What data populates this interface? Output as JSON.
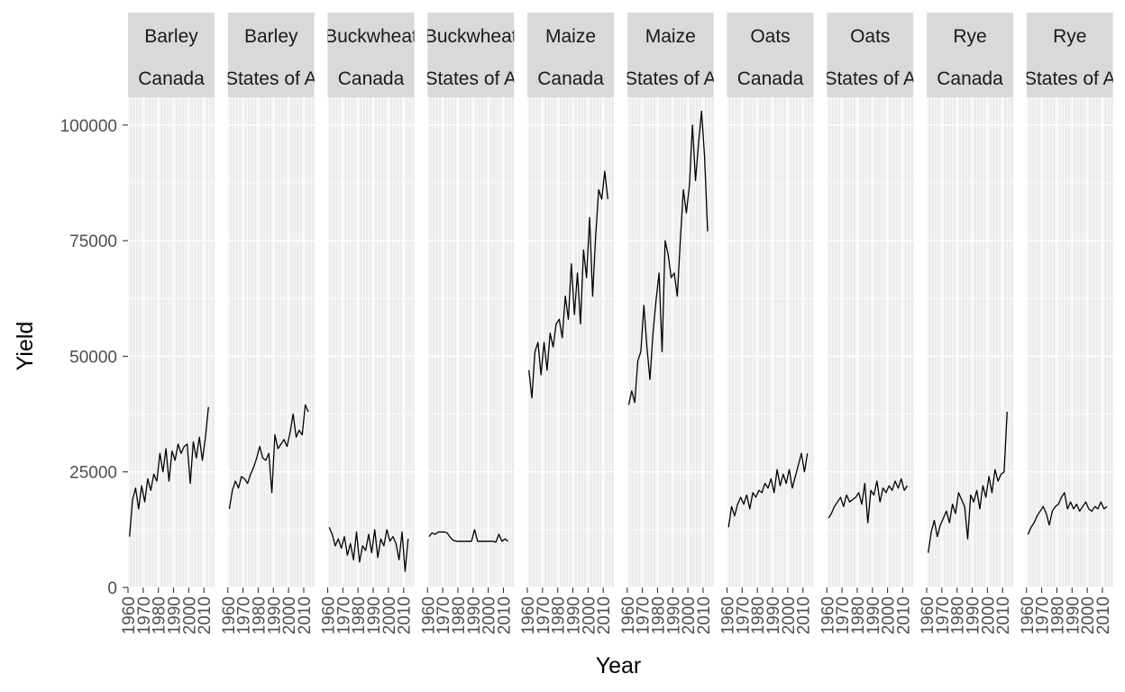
{
  "chart_data": {
    "type": "line",
    "layout": "facet_wrap",
    "xlabel": "Year",
    "ylabel": "Yield",
    "xlim": [
      1960,
      2017
    ],
    "ylim": [
      0,
      106000
    ],
    "x_ticks": [
      1960,
      1970,
      1980,
      1990,
      2000,
      2010
    ],
    "y_ticks": [
      0,
      25000,
      50000,
      75000,
      100000
    ],
    "y_tick_labels": [
      "0",
      "25000",
      "50000",
      "75000",
      "100000"
    ],
    "grid": true,
    "series_color": "#000000",
    "panel_background": "#ebebeb",
    "strip_background": "#d9d9d9",
    "panels": [
      {
        "strip": [
          "Barley",
          "Canada"
        ],
        "x_tick_labels": [
          "1960",
          "1970",
          "1980",
          "1990",
          "2000",
          "2010"
        ],
        "x": [
          1961,
          1963,
          1965,
          1967,
          1969,
          1971,
          1973,
          1975,
          1977,
          1979,
          1981,
          1983,
          1985,
          1987,
          1989,
          1991,
          1993,
          1995,
          1997,
          1999,
          2001,
          2003,
          2005,
          2007,
          2009,
          2011,
          2013
        ],
        "values": [
          11000,
          19000,
          21500,
          17000,
          22000,
          18500,
          23500,
          21000,
          24500,
          23000,
          29000,
          25000,
          30000,
          23000,
          29500,
          27500,
          31000,
          29000,
          30500,
          31000,
          22500,
          31500,
          28000,
          32500,
          27500,
          32500,
          39000
        ]
      },
      {
        "strip": [
          "Barley",
          "States of A"
        ],
        "x_tick_labels": [
          "1960",
          "1970",
          "1980",
          "1990",
          "2000",
          "2010"
        ],
        "x": [
          1961,
          1963,
          1965,
          1967,
          1969,
          1971,
          1973,
          1975,
          1977,
          1979,
          1981,
          1983,
          1985,
          1987,
          1989,
          1991,
          1993,
          1995,
          1997,
          1999,
          2001,
          2003,
          2005,
          2007,
          2009,
          2011,
          2013
        ],
        "values": [
          17000,
          21000,
          23000,
          21500,
          24000,
          23500,
          22500,
          24500,
          26000,
          28000,
          30500,
          28000,
          27500,
          29000,
          20500,
          33000,
          30000,
          31000,
          32000,
          30500,
          33500,
          37500,
          32500,
          34000,
          33000,
          39500,
          38000
        ]
      },
      {
        "strip": [
          "Buckwheat",
          "Canada"
        ],
        "x_tick_labels": [
          "1960",
          "1970",
          "1980",
          "1990",
          "2000",
          "2010"
        ],
        "x": [
          1961,
          1963,
          1965,
          1967,
          1969,
          1971,
          1973,
          1975,
          1977,
          1979,
          1981,
          1983,
          1985,
          1987,
          1989,
          1991,
          1993,
          1995,
          1997,
          1999,
          2001,
          2003,
          2005,
          2007,
          2009,
          2011,
          2013
        ],
        "values": [
          13000,
          11500,
          9000,
          10500,
          8500,
          11000,
          7000,
          9500,
          6000,
          12000,
          5500,
          9000,
          8000,
          11500,
          7500,
          12500,
          6500,
          10500,
          9000,
          12500,
          10000,
          11000,
          9500,
          6000,
          12000,
          3500,
          10500
        ]
      },
      {
        "strip": [
          "Buckwheat",
          "States of A"
        ],
        "x_tick_labels": [
          "1960",
          "1970",
          "1980",
          "1990",
          "2000",
          "2010"
        ],
        "x": [
          1961,
          1963,
          1965,
          1967,
          1969,
          1971,
          1973,
          1975,
          1977,
          1979,
          1981,
          1983,
          1985,
          1987,
          1989,
          1991,
          1993,
          1995,
          1997,
          1999,
          2001,
          2003,
          2005,
          2007,
          2009,
          2011,
          2013
        ],
        "values": [
          11000,
          11800,
          11500,
          12000,
          12000,
          12000,
          11800,
          10800,
          10200,
          10000,
          10000,
          10000,
          10000,
          10000,
          10000,
          12500,
          10000,
          10000,
          10000,
          10000,
          10000,
          10000,
          9800,
          11500,
          10000,
          10500,
          10000
        ]
      },
      {
        "strip": [
          "Maize",
          "Canada"
        ],
        "x_tick_labels": [
          "1960",
          "1970",
          "1980",
          "1990",
          "2000",
          "2010"
        ],
        "x": [
          1961,
          1963,
          1965,
          1967,
          1969,
          1971,
          1973,
          1975,
          1977,
          1979,
          1981,
          1983,
          1985,
          1987,
          1989,
          1991,
          1993,
          1995,
          1997,
          1999,
          2001,
          2003,
          2005,
          2007,
          2009,
          2011,
          2013
        ],
        "values": [
          47000,
          41000,
          51000,
          53000,
          46000,
          53000,
          47000,
          55000,
          52000,
          57000,
          58000,
          54000,
          63000,
          58000,
          70000,
          59000,
          68000,
          57000,
          73000,
          67000,
          80000,
          63000,
          76000,
          86000,
          84000,
          90000,
          84000
        ]
      },
      {
        "strip": [
          "Maize",
          "States of A"
        ],
        "x_tick_labels": [
          "1960",
          "1970",
          "1980",
          "1990",
          "2000",
          "2010"
        ],
        "x": [
          1961,
          1963,
          1965,
          1967,
          1969,
          1971,
          1973,
          1975,
          1977,
          1979,
          1981,
          1983,
          1985,
          1987,
          1989,
          1991,
          1993,
          1995,
          1997,
          1999,
          2001,
          2003,
          2005,
          2007,
          2009,
          2011,
          2013
        ],
        "values": [
          39500,
          42500,
          40000,
          49000,
          51000,
          61000,
          52000,
          45000,
          55000,
          62000,
          68000,
          51000,
          75000,
          72000,
          67000,
          68000,
          63000,
          75000,
          86000,
          81000,
          87000,
          100000,
          88000,
          96000,
          103000,
          93000,
          77000
        ]
      },
      {
        "strip": [
          "Oats",
          "Canada"
        ],
        "x_tick_labels": [
          "1960",
          "1970",
          "1980",
          "1990",
          "2000",
          "2010"
        ],
        "x": [
          1961,
          1963,
          1965,
          1967,
          1969,
          1971,
          1973,
          1975,
          1977,
          1979,
          1981,
          1983,
          1985,
          1987,
          1989,
          1991,
          1993,
          1995,
          1997,
          1999,
          2001,
          2003,
          2005,
          2007,
          2009,
          2011,
          2013
        ],
        "values": [
          13000,
          17500,
          15500,
          18000,
          19500,
          18000,
          20000,
          17000,
          20500,
          19500,
          21000,
          20500,
          22500,
          21500,
          23500,
          20500,
          25500,
          22000,
          24500,
          22500,
          25500,
          21500,
          24000,
          26500,
          29000,
          25000,
          29000
        ]
      },
      {
        "strip": [
          "Oats",
          "States of A"
        ],
        "x_tick_labels": [
          "1960",
          "1970",
          "1980",
          "1990",
          "2000",
          "2010"
        ],
        "x": [
          1961,
          1963,
          1965,
          1967,
          1969,
          1971,
          1973,
          1975,
          1977,
          1979,
          1981,
          1983,
          1985,
          1987,
          1989,
          1991,
          1993,
          1995,
          1997,
          1999,
          2001,
          2003,
          2005,
          2007,
          2009,
          2011,
          2013
        ],
        "values": [
          15000,
          16000,
          17500,
          18500,
          19500,
          17500,
          20000,
          18500,
          19000,
          19500,
          20500,
          18000,
          22500,
          14000,
          21000,
          20000,
          23000,
          18500,
          21500,
          20500,
          22000,
          21000,
          23000,
          21500,
          23500,
          21000,
          22000
        ]
      },
      {
        "strip": [
          "Rye",
          "Canada"
        ],
        "x_tick_labels": [
          "1960",
          "1970",
          "1980",
          "1990",
          "2000",
          "2010"
        ],
        "x": [
          1961,
          1963,
          1965,
          1967,
          1969,
          1971,
          1973,
          1975,
          1977,
          1979,
          1981,
          1983,
          1985,
          1987,
          1989,
          1991,
          1993,
          1995,
          1997,
          1999,
          2001,
          2003,
          2005,
          2007,
          2009,
          2011,
          2013
        ],
        "values": [
          7500,
          12000,
          14500,
          11000,
          13500,
          15000,
          16500,
          14000,
          18000,
          16000,
          20500,
          19000,
          17500,
          10500,
          20000,
          18500,
          21000,
          17000,
          22000,
          19500,
          24000,
          20500,
          25500,
          23000,
          24500,
          25000,
          38000
        ]
      },
      {
        "strip": [
          "Rye",
          "States of A"
        ],
        "x_tick_labels": [
          "1960",
          "1970",
          "1980",
          "1990",
          "2000",
          "2010"
        ],
        "x": [
          1961,
          1963,
          1965,
          1967,
          1969,
          1971,
          1973,
          1975,
          1977,
          1979,
          1981,
          1983,
          1985,
          1987,
          1989,
          1991,
          1993,
          1995,
          1997,
          1999,
          2001,
          2003,
          2005,
          2007,
          2009,
          2011,
          2013
        ],
        "values": [
          11500,
          13000,
          14000,
          15500,
          16500,
          17500,
          16000,
          13500,
          16500,
          17500,
          18000,
          19500,
          20500,
          17000,
          18500,
          17000,
          18000,
          16500,
          17500,
          18500,
          17000,
          16500,
          17500,
          17000,
          18500,
          17000,
          17500
        ]
      }
    ]
  }
}
